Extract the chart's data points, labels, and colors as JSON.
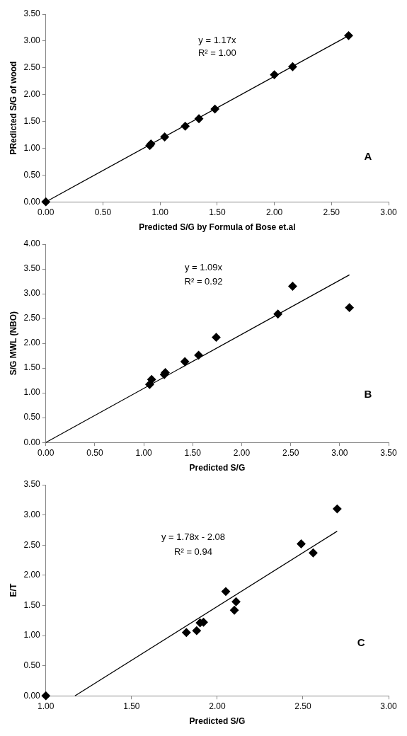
{
  "chart_data": [
    {
      "type": "scatter",
      "xlabel": "Predicted S/G by Formula of Bose et.al",
      "ylabel": "PRedicted S/G of wood",
      "xlim": [
        0,
        3
      ],
      "xticks": [
        {
          "value": 0,
          "label": "0.00"
        },
        {
          "value": 0.5,
          "label": "0.50"
        },
        {
          "value": 1,
          "label": "1.00"
        },
        {
          "value": 1.5,
          "label": "1.50"
        },
        {
          "value": 2,
          "label": "2.00"
        },
        {
          "value": 2.5,
          "label": "2.50"
        },
        {
          "value": 3,
          "label": "3.00"
        }
      ],
      "ylim": [
        0,
        3.5
      ],
      "yticks": [
        {
          "value": 0,
          "label": "0.00"
        },
        {
          "value": 0.5,
          "label": "0.50"
        },
        {
          "value": 1,
          "label": "1.00"
        },
        {
          "value": 1.5,
          "label": "1.50"
        },
        {
          "value": 2,
          "label": "2.00"
        },
        {
          "value": 2.5,
          "label": "2.50"
        },
        {
          "value": 3,
          "label": "3.00"
        },
        {
          "value": 3.5,
          "label": "3.50"
        }
      ],
      "grid": false,
      "legend": false,
      "marker": "diamond",
      "annotations": [
        "y = 1.17x",
        "R² = 1.00",
        "A"
      ],
      "series": [
        {
          "type": "scatter",
          "color": "#000000",
          "x": [
            0,
            0.91,
            0.92,
            1.04,
            1.22,
            1.34,
            1.48,
            2.0,
            2.16,
            2.65
          ],
          "values": [
            0,
            1.05,
            1.08,
            1.21,
            1.41,
            1.55,
            1.73,
            2.37,
            2.52,
            3.1
          ]
        },
        {
          "type": "line",
          "color": "#000000",
          "marker": "none",
          "x": [
            0,
            2.65
          ],
          "values": [
            0,
            3.1
          ]
        }
      ]
    },
    {
      "type": "scatter",
      "xlabel": "Predicted S/G",
      "ylabel": "S/G MWL (NBO)",
      "xlim": [
        0,
        3.5
      ],
      "xticks": [
        {
          "value": 0,
          "label": "0.00"
        },
        {
          "value": 0.5,
          "label": "0.50"
        },
        {
          "value": 1,
          "label": "1.00"
        },
        {
          "value": 1.5,
          "label": "1.50"
        },
        {
          "value": 2,
          "label": "2.00"
        },
        {
          "value": 2.5,
          "label": "2.50"
        },
        {
          "value": 3,
          "label": "3.00"
        },
        {
          "value": 3.5,
          "label": "3.50"
        }
      ],
      "ylim": [
        0,
        4
      ],
      "yticks": [
        {
          "value": 0,
          "label": "0.00"
        },
        {
          "value": 0.5,
          "label": "0.50"
        },
        {
          "value": 1,
          "label": "1.00"
        },
        {
          "value": 1.5,
          "label": "1.50"
        },
        {
          "value": 2,
          "label": "2.00"
        },
        {
          "value": 2.5,
          "label": "2.50"
        },
        {
          "value": 3,
          "label": "3.00"
        },
        {
          "value": 3.5,
          "label": "3.50"
        },
        {
          "value": 4,
          "label": "4.00"
        }
      ],
      "grid": false,
      "legend": false,
      "marker": "diamond",
      "annotations": [
        "y = 1.09x",
        "R² = 0.92",
        "B"
      ],
      "series": [
        {
          "type": "scatter",
          "color": "#000000",
          "x": [
            1.06,
            1.08,
            1.21,
            1.22,
            1.42,
            1.56,
            1.74,
            2.37,
            2.52,
            3.1
          ],
          "values": [
            1.17,
            1.27,
            1.37,
            1.41,
            1.63,
            1.76,
            2.12,
            2.59,
            3.15,
            2.72
          ]
        },
        {
          "type": "line",
          "color": "#000000",
          "marker": "none",
          "x": [
            0,
            3.1
          ],
          "values": [
            0,
            3.38
          ]
        }
      ]
    },
    {
      "type": "scatter",
      "xlabel": "Predicted S/G",
      "ylabel": "E/T",
      "xlim": [
        1,
        3
      ],
      "xticks": [
        {
          "value": 1,
          "label": "1.00"
        },
        {
          "value": 1.5,
          "label": "1.50"
        },
        {
          "value": 2,
          "label": "2.00"
        },
        {
          "value": 2.5,
          "label": "2.50"
        },
        {
          "value": 3,
          "label": "3.00"
        }
      ],
      "ylim": [
        0,
        3.5
      ],
      "yticks": [
        {
          "value": 0,
          "label": "0.00"
        },
        {
          "value": 0.5,
          "label": "0.50"
        },
        {
          "value": 1,
          "label": "1.00"
        },
        {
          "value": 1.5,
          "label": "1.50"
        },
        {
          "value": 2,
          "label": "2.00"
        },
        {
          "value": 2.5,
          "label": "2.50"
        },
        {
          "value": 3,
          "label": "3.00"
        },
        {
          "value": 3.5,
          "label": "3.50"
        }
      ],
      "grid": false,
      "legend": false,
      "marker": "diamond",
      "annotations": [
        "y = 1.78x - 2.08",
        "R² = 0.94",
        "C"
      ],
      "series": [
        {
          "type": "scatter",
          "color": "#000000",
          "x": [
            1.0,
            1.82,
            1.88,
            1.9,
            1.92,
            2.05,
            2.1,
            2.11,
            2.49,
            2.56,
            2.7
          ],
          "values": [
            0,
            1.05,
            1.08,
            1.21,
            1.22,
            1.73,
            1.42,
            1.56,
            2.52,
            2.37,
            3.1
          ]
        },
        {
          "type": "line",
          "color": "#000000",
          "marker": "none",
          "x": [
            1.17,
            2.7
          ],
          "values": [
            0,
            2.73
          ]
        }
      ]
    }
  ]
}
